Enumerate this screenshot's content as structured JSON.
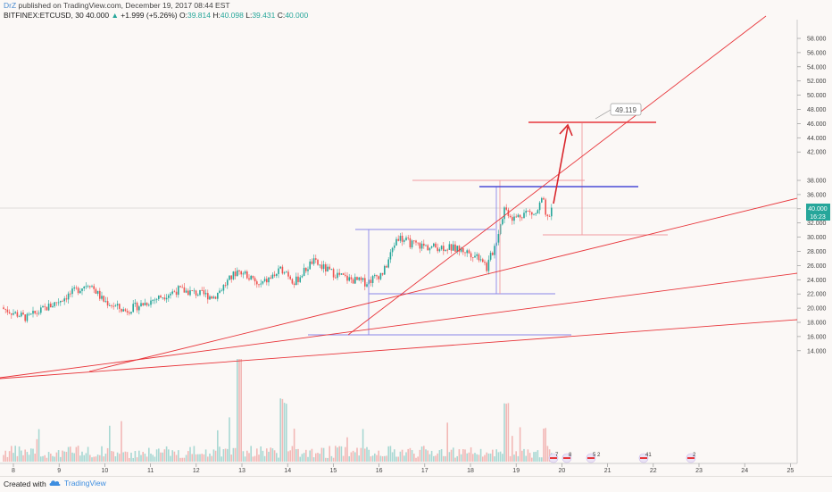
{
  "header": {
    "author": "DrZ",
    "published": "published on TradingView.com, December 19, 2017 08:44 EST",
    "symbol": "BITFINEX:ETCUSD, 30",
    "last": "40.000",
    "change": "+1.999 (+5.26%)",
    "open_label": "O:",
    "open": "39.814",
    "high_label": "H:",
    "high": "40.098",
    "low_label": "L:",
    "low": "39.431",
    "close_label": "C:",
    "close": "40.000"
  },
  "price_axis": {
    "labels": [
      "58.000",
      "56.000",
      "54.000",
      "52.000",
      "50.000",
      "48.000",
      "46.000",
      "44.000",
      "42.000",
      "40.000",
      "38.000",
      "36.000",
      "34.000",
      "32.000",
      "30.000",
      "28.000",
      "26.000",
      "24.000",
      "22.000",
      "20.000",
      "18.000",
      "16.000",
      "14.000"
    ],
    "current_price": "40.000",
    "countdown": "16:23",
    "current_color": "#26a69a"
  },
  "time_axis": {
    "labels": [
      "8",
      "9",
      "10",
      "11",
      "12",
      "13",
      "14",
      "15",
      "16",
      "17",
      "18",
      "19",
      "20",
      "21",
      "22",
      "23",
      "24",
      "25"
    ]
  },
  "annotations": {
    "target_label": "49.119"
  },
  "events": [
    {
      "label": "7"
    },
    {
      "label": "8"
    },
    {
      "label": "5 2"
    },
    {
      "label": "41"
    },
    {
      "label": "2"
    }
  ],
  "colors": {
    "up": "#26a69a",
    "down": "#ef5350",
    "trendline": "#e8363b",
    "box": "#8a86e8",
    "target": "#e8363b",
    "background": "#fbf8f6"
  },
  "footer": {
    "created": "Created with",
    "brand": "TradingView"
  }
}
